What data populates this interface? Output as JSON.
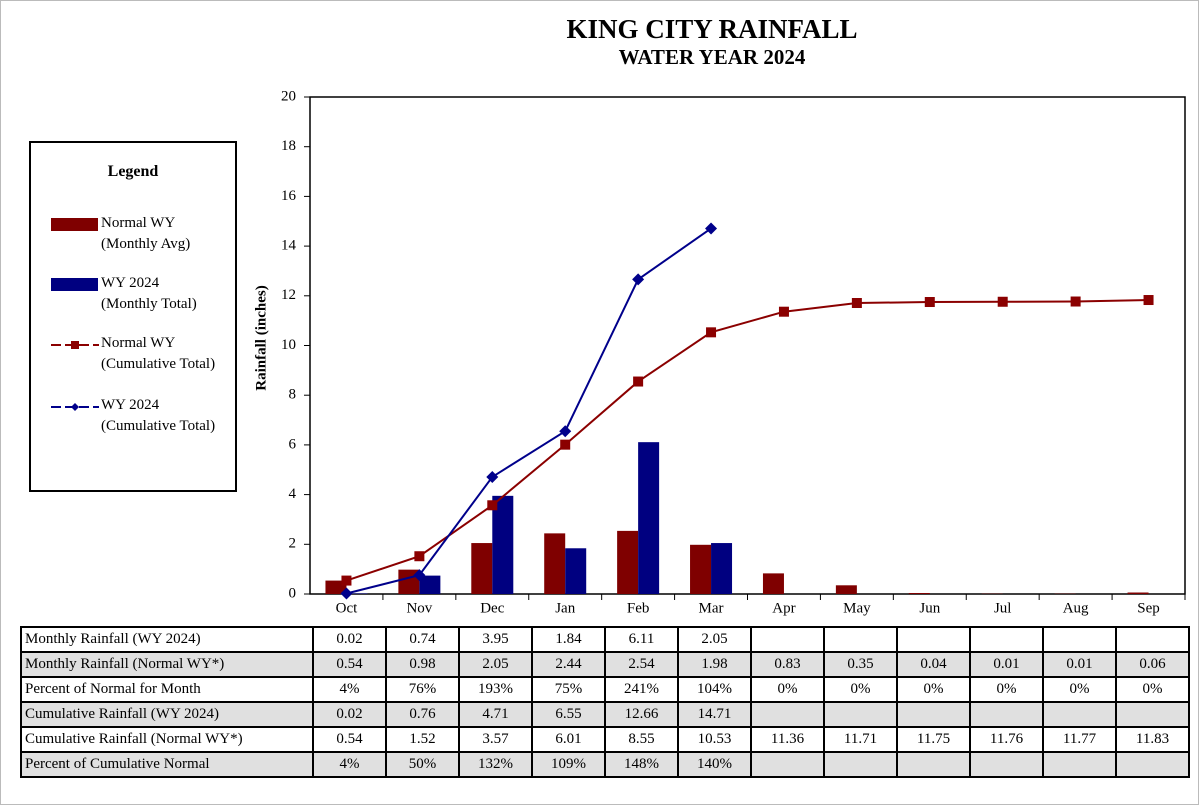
{
  "chart_data": {
    "type": "bar-line",
    "title": "KING CITY RAINFALL",
    "subtitle": "WATER YEAR 2024",
    "y_label": "Rainfall (inches)",
    "legend_title": "Legend",
    "categories": [
      "Oct",
      "Nov",
      "Dec",
      "Jan",
      "Feb",
      "Mar",
      "Apr",
      "May",
      "Jun",
      "Jul",
      "Aug",
      "Sep"
    ],
    "ylim": [
      0,
      20
    ],
    "yticks": [
      0,
      2,
      4,
      6,
      8,
      10,
      12,
      14,
      16,
      18,
      20
    ],
    "grid": false,
    "legend": "left",
    "series": [
      {
        "name": "Normal WY (Monthly Avg)",
        "table_label": "Monthly Rainfall (Normal WY*)",
        "kind": "bar",
        "color": "#7f0000",
        "values": [
          0.54,
          0.98,
          2.05,
          2.44,
          2.54,
          1.98,
          0.83,
          0.35,
          0.04,
          0.01,
          0.01,
          0.06
        ]
      },
      {
        "name": "WY 2024 (Monthly Total)",
        "table_label": "Monthly Rainfall (WY 2024)",
        "kind": "bar",
        "color": "#000080",
        "values": [
          0.02,
          0.74,
          3.95,
          1.84,
          6.11,
          2.05,
          null,
          null,
          null,
          null,
          null,
          null
        ]
      },
      {
        "name": "Normal WY (Cumulative Total)",
        "table_label": "Cumulative Rainfall (Normal WY*)",
        "kind": "line",
        "marker": "square",
        "color": "#8b0000",
        "values": [
          0.54,
          1.52,
          3.57,
          6.01,
          8.55,
          10.53,
          11.36,
          11.71,
          11.75,
          11.76,
          11.77,
          11.83
        ]
      },
      {
        "name": "WY 2024 (Cumulative Total)",
        "table_label": "Cumulative Rainfall (WY 2024)",
        "kind": "line",
        "marker": "diamond",
        "color": "#00008b",
        "values": [
          0.02,
          0.76,
          4.71,
          6.55,
          12.66,
          14.71,
          null,
          null,
          null,
          null,
          null,
          null
        ]
      }
    ],
    "table": [
      {
        "label": "Percent of Normal for Month",
        "values": [
          "4%",
          "76%",
          "193%",
          "75%",
          "241%",
          "104%",
          "0%",
          "0%",
          "0%",
          "0%",
          "0%",
          "0%"
        ]
      },
      {
        "label": "Percent of Cumulative Normal",
        "values": [
          "4%",
          "50%",
          "132%",
          "109%",
          "148%",
          "140%",
          null,
          null,
          null,
          null,
          null,
          null
        ]
      }
    ]
  }
}
